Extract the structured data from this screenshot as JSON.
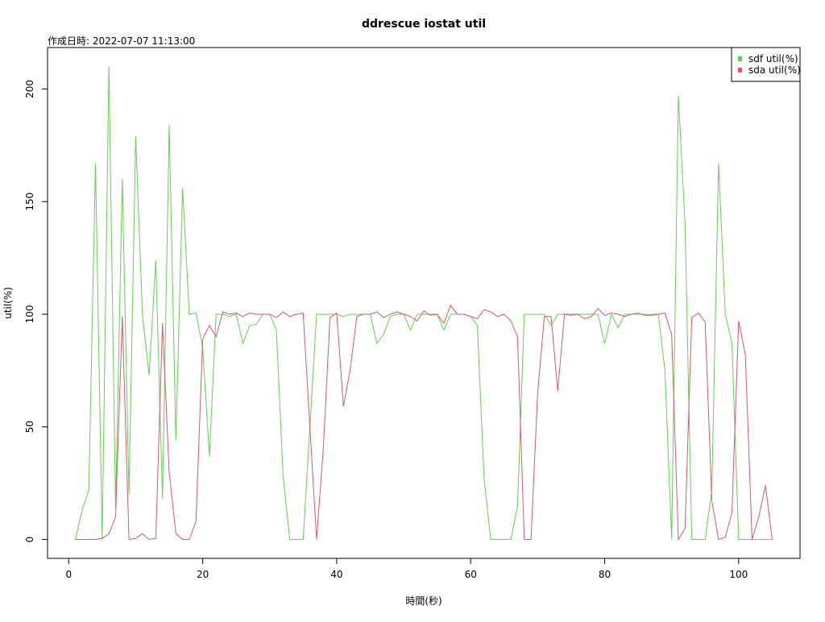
{
  "chart_data": {
    "type": "line",
    "title": "ddrescue iostat util",
    "subtitle": "作成日時: 2022-07-07 11:13:00",
    "x_label": "時間(秒)",
    "y_label": "util(%)",
    "x": [
      1,
      2,
      3,
      4,
      5,
      6,
      7,
      8,
      9,
      10,
      11,
      12,
      13,
      14,
      15,
      16,
      17,
      18,
      19,
      20,
      21,
      22,
      23,
      24,
      25,
      26,
      27,
      28,
      29,
      30,
      31,
      32,
      33,
      34,
      35,
      36,
      37,
      38,
      39,
      40,
      41,
      42,
      43,
      44,
      45,
      46,
      47,
      48,
      49,
      50,
      51,
      52,
      53,
      54,
      55,
      56,
      57,
      58,
      59,
      60,
      61,
      62,
      63,
      64,
      65,
      66,
      67,
      68,
      69,
      70,
      71,
      72,
      73,
      74,
      75,
      76,
      77,
      78,
      79,
      80,
      81,
      82,
      83,
      84,
      85,
      86,
      87,
      88,
      89,
      90,
      91,
      92,
      93,
      94,
      95,
      96,
      97,
      98,
      99,
      100,
      101,
      102,
      103,
      104,
      105
    ],
    "series": [
      {
        "name": "sdf util(%)",
        "color": "#61D04F",
        "values": [
          0,
          13,
          22,
          167,
          0,
          210,
          14,
          160,
          20,
          179,
          100,
          73,
          124,
          18,
          184,
          44,
          156,
          100,
          100.5,
          85,
          37,
          100,
          100,
          99,
          100,
          87,
          95,
          95.5,
          100,
          100,
          93,
          28,
          0,
          0,
          0,
          50,
          100,
          100,
          100,
          100,
          99,
          100,
          100,
          100,
          100,
          87,
          91,
          99,
          100,
          100,
          93,
          100,
          100,
          100,
          100,
          93,
          100,
          100,
          100,
          99,
          95,
          27,
          0,
          0,
          0,
          0,
          15,
          100,
          100,
          100,
          100,
          95,
          100,
          100,
          100,
          100,
          100,
          100,
          100,
          87,
          100,
          94,
          100,
          100,
          100,
          100,
          100,
          100,
          75,
          0,
          197,
          140,
          0,
          0,
          0,
          22,
          167,
          100,
          87,
          0,
          0,
          0,
          0,
          0,
          0
        ]
      },
      {
        "name": "sda util(%)",
        "color": "#DF536B",
        "values": [
          0,
          0,
          0,
          0,
          0.5,
          2.5,
          10,
          99,
          0,
          0.5,
          2.5,
          0,
          0.5,
          96,
          30,
          2.5,
          0,
          0,
          8,
          89,
          95,
          90,
          101,
          100,
          100.5,
          99,
          100.5,
          100,
          100,
          100,
          98.5,
          101,
          99,
          100,
          100.5,
          50,
          0,
          40,
          98.5,
          100.5,
          59,
          75,
          99,
          100,
          100,
          101,
          98.5,
          100,
          101,
          100,
          99,
          97,
          101.5,
          99.5,
          100,
          96,
          104,
          100,
          100,
          99,
          98,
          102,
          101,
          99,
          100,
          97,
          90,
          0,
          0,
          65,
          99,
          99,
          66,
          100,
          99.5,
          100,
          98,
          99,
          102.5,
          99.5,
          100.5,
          100,
          99,
          100,
          100.5,
          99.5,
          99.5,
          100,
          100.5,
          91,
          0,
          5,
          98.5,
          100.5,
          96.5,
          17,
          0,
          1,
          12,
          97,
          82,
          0,
          10,
          24,
          0
        ]
      }
    ],
    "xlim": [
      -3.16,
      109.16
    ],
    "ylim": [
      -8.4,
      218.4
    ],
    "xticks": [
      0,
      20,
      40,
      60,
      80,
      100
    ],
    "yticks": [
      0,
      50,
      100,
      150,
      200
    ],
    "legend": "top-right"
  }
}
